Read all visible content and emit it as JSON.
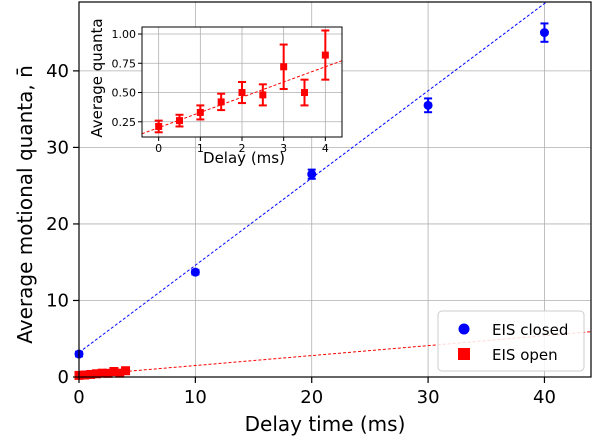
{
  "chart_data": [
    {
      "type": "scatter",
      "xlabel": "Delay time (ms)",
      "ylabel": "Average motional quanta, n̄",
      "xlim": [
        0,
        44
      ],
      "ylim": [
        0,
        49
      ],
      "xticks": [
        0,
        10,
        20,
        30,
        40
      ],
      "yticks": [
        0,
        10,
        20,
        30,
        40
      ],
      "grid": true,
      "legend_position": "lower-right",
      "series": [
        {
          "name": "EIS closed",
          "color": "#0000ff",
          "marker": "circle",
          "x": [
            0,
            10,
            20,
            30,
            40
          ],
          "y": [
            3.0,
            13.7,
            26.5,
            35.5,
            45.0
          ],
          "yerr": [
            0.3,
            0.3,
            0.6,
            0.9,
            1.2
          ],
          "fit": {
            "slope": 1.14,
            "intercept": 3.2,
            "color": "#0000ff"
          }
        },
        {
          "name": "EIS open",
          "color": "#ff0000",
          "marker": "square",
          "x": [
            0,
            0.5,
            1,
            1.5,
            2,
            2.5,
            3,
            3.5,
            4
          ],
          "y": [
            0.21,
            0.26,
            0.33,
            0.42,
            0.5,
            0.48,
            0.72,
            0.5,
            0.82
          ],
          "yerr": [
            0.05,
            0.05,
            0.06,
            0.07,
            0.09,
            0.09,
            0.19,
            0.11,
            0.21
          ],
          "fit": {
            "slope": 0.13,
            "intercept": 0.2,
            "color": "#ff0000"
          }
        }
      ]
    },
    {
      "type": "scatter",
      "xlabel": "Delay (ms)",
      "ylabel": "Average quanta",
      "xlim": [
        -0.4,
        4.4
      ],
      "ylim": [
        0.12,
        1.06
      ],
      "xticks": [
        0,
        1,
        2,
        3,
        4
      ],
      "yticks": [
        0.25,
        0.5,
        0.75,
        1.0
      ],
      "ytick_labels": [
        "0.25",
        "0.50",
        "0.75",
        "1.00"
      ],
      "grid": true,
      "series": [
        {
          "color": "#ff0000",
          "marker": "square",
          "x": [
            0,
            0.5,
            1,
            1.5,
            2,
            2.5,
            3,
            3.5,
            4
          ],
          "y": [
            0.21,
            0.26,
            0.33,
            0.42,
            0.5,
            0.48,
            0.72,
            0.5,
            0.82
          ],
          "yerr": [
            0.05,
            0.05,
            0.06,
            0.07,
            0.09,
            0.09,
            0.19,
            0.11,
            0.21
          ],
          "fit": {
            "slope": 0.13,
            "intercept": 0.2,
            "color": "#ff0000"
          }
        }
      ]
    }
  ]
}
